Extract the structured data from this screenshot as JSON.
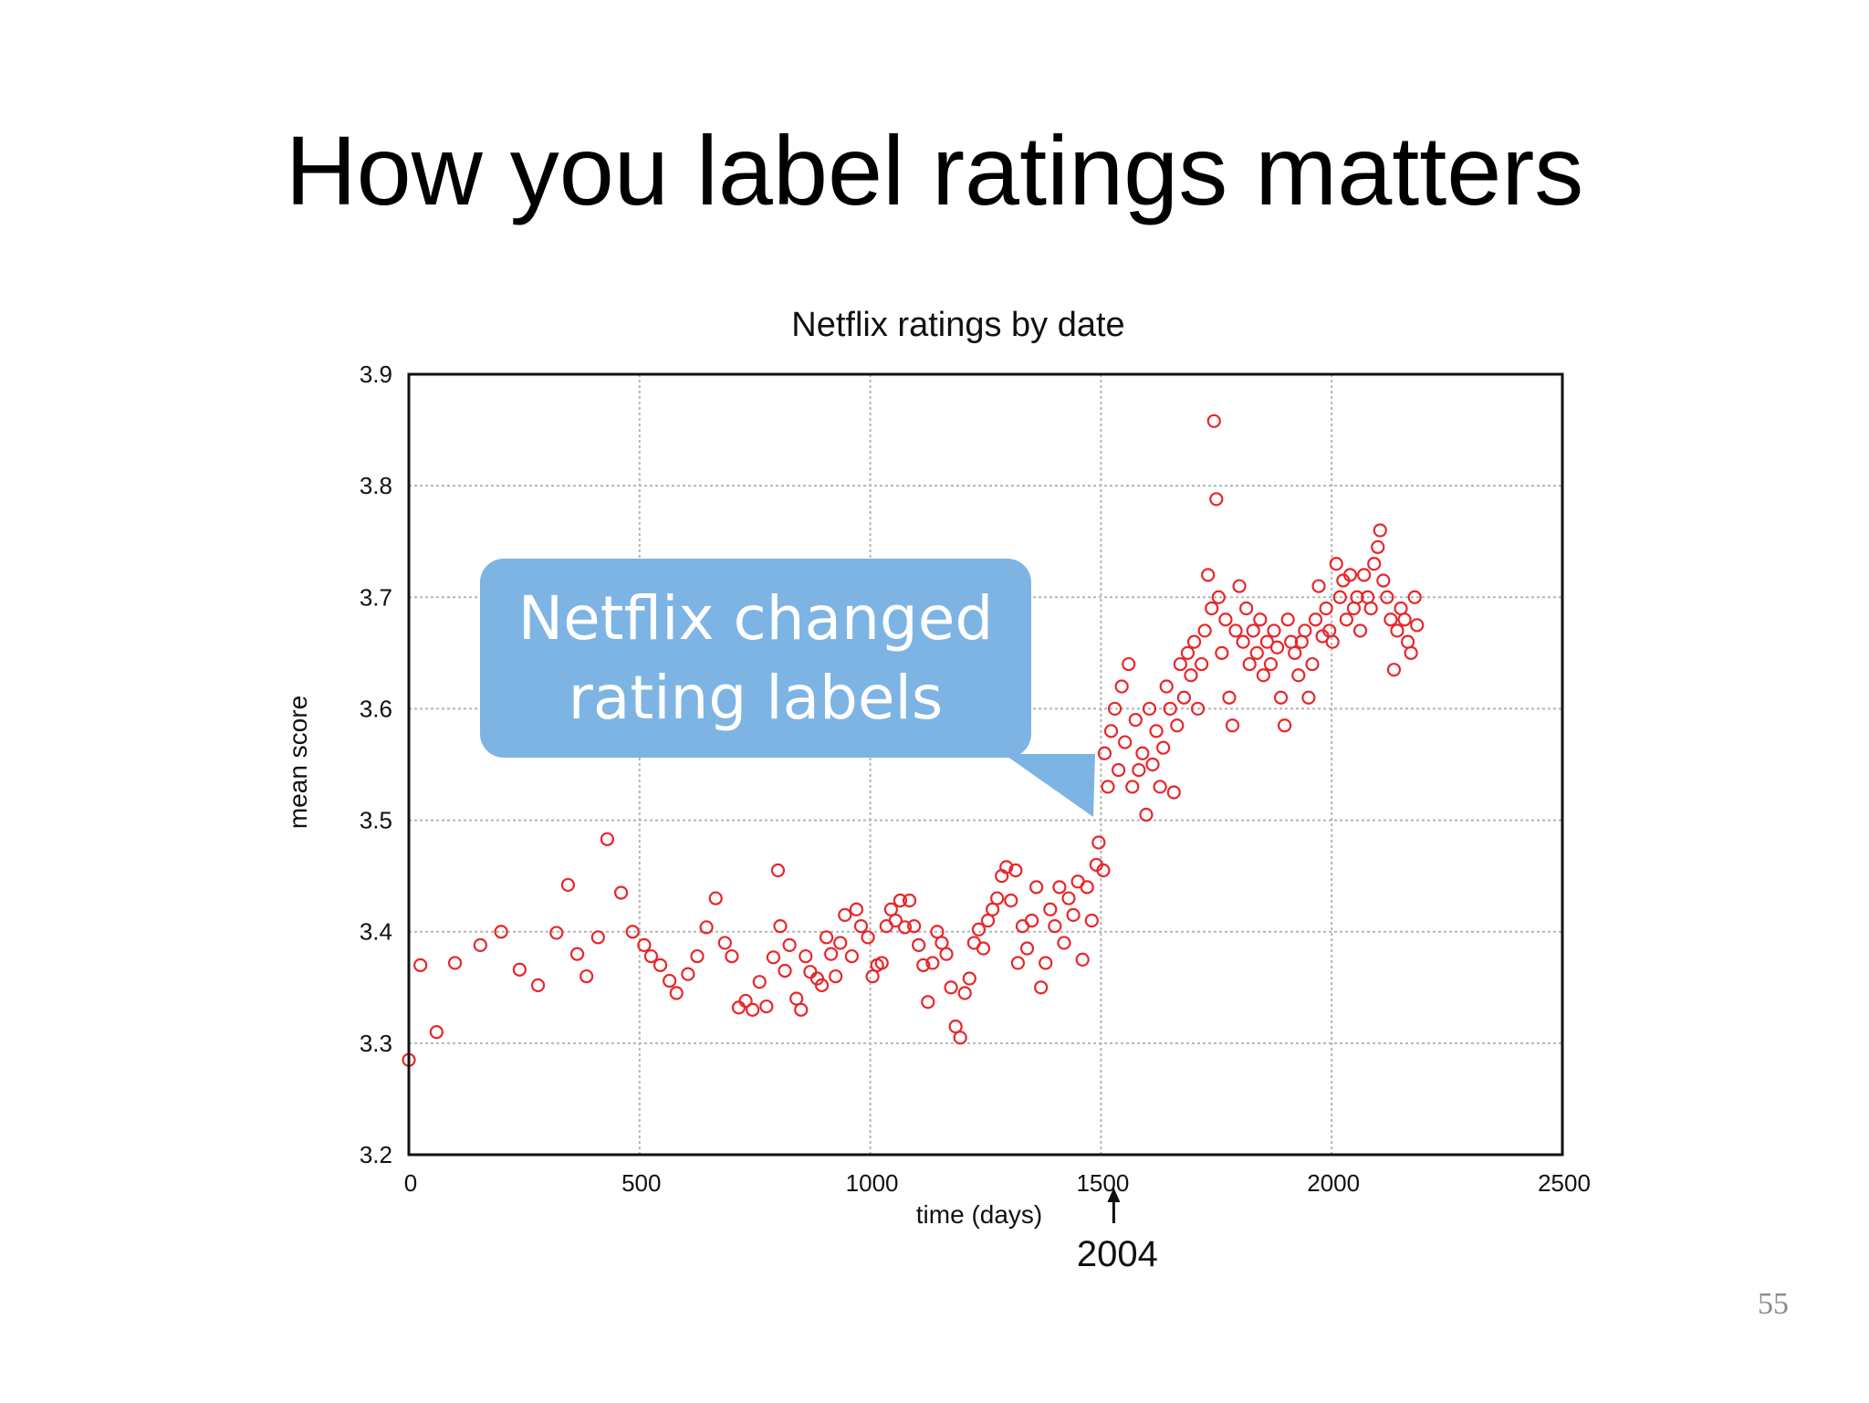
{
  "slide": {
    "title": "How you label ratings matters",
    "page_number": "55"
  },
  "callout": {
    "text": "Netflix changed rating labels"
  },
  "colors": {
    "marker": "#e8262a",
    "callout_bg": "#7db4e4",
    "grid": "#b5b5b5"
  },
  "chart_data": {
    "type": "scatter",
    "title": "Netflix ratings by date",
    "xlabel": "time (days)",
    "ylabel": "mean score",
    "xlim": [
      0,
      2500
    ],
    "ylim": [
      3.2,
      3.9
    ],
    "xticks": [
      "0",
      "500",
      "1000",
      "1500",
      "2000",
      "2500"
    ],
    "yticks": [
      "3.2",
      "3.3",
      "3.4",
      "3.5",
      "3.6",
      "3.7",
      "3.8",
      "3.9"
    ],
    "grid": true,
    "annotation": {
      "text": "2004",
      "x": 1500
    },
    "series": [
      {
        "marker": "open-circle",
        "points": [
          [
            0,
            3.285
          ],
          [
            25,
            3.37
          ],
          [
            60,
            3.31
          ],
          [
            100,
            3.372
          ],
          [
            155,
            3.388
          ],
          [
            200,
            3.4
          ],
          [
            240,
            3.366
          ],
          [
            280,
            3.352
          ],
          [
            320,
            3.399
          ],
          [
            345,
            3.442
          ],
          [
            365,
            3.38
          ],
          [
            385,
            3.36
          ],
          [
            410,
            3.395
          ],
          [
            430,
            3.483
          ],
          [
            460,
            3.435
          ],
          [
            485,
            3.4
          ],
          [
            510,
            3.388
          ],
          [
            525,
            3.378
          ],
          [
            545,
            3.37
          ],
          [
            565,
            3.356
          ],
          [
            580,
            3.345
          ],
          [
            605,
            3.362
          ],
          [
            625,
            3.378
          ],
          [
            645,
            3.404
          ],
          [
            665,
            3.43
          ],
          [
            685,
            3.39
          ],
          [
            700,
            3.378
          ],
          [
            715,
            3.332
          ],
          [
            730,
            3.338
          ],
          [
            745,
            3.33
          ],
          [
            760,
            3.355
          ],
          [
            775,
            3.333
          ],
          [
            790,
            3.377
          ],
          [
            800,
            3.455
          ],
          [
            805,
            3.405
          ],
          [
            815,
            3.365
          ],
          [
            825,
            3.388
          ],
          [
            840,
            3.34
          ],
          [
            850,
            3.33
          ],
          [
            860,
            3.378
          ],
          [
            870,
            3.364
          ],
          [
            885,
            3.358
          ],
          [
            895,
            3.352
          ],
          [
            905,
            3.395
          ],
          [
            915,
            3.38
          ],
          [
            925,
            3.36
          ],
          [
            935,
            3.39
          ],
          [
            945,
            3.415
          ],
          [
            960,
            3.378
          ],
          [
            970,
            3.42
          ],
          [
            980,
            3.405
          ],
          [
            995,
            3.395
          ],
          [
            1005,
            3.36
          ],
          [
            1015,
            3.37
          ],
          [
            1025,
            3.372
          ],
          [
            1035,
            3.405
          ],
          [
            1045,
            3.42
          ],
          [
            1055,
            3.41
          ],
          [
            1065,
            3.428
          ],
          [
            1075,
            3.404
          ],
          [
            1085,
            3.428
          ],
          [
            1095,
            3.405
          ],
          [
            1105,
            3.388
          ],
          [
            1115,
            3.37
          ],
          [
            1125,
            3.337
          ],
          [
            1135,
            3.372
          ],
          [
            1145,
            3.4
          ],
          [
            1155,
            3.39
          ],
          [
            1165,
            3.38
          ],
          [
            1175,
            3.35
          ],
          [
            1185,
            3.315
          ],
          [
            1195,
            3.305
          ],
          [
            1205,
            3.345
          ],
          [
            1215,
            3.358
          ],
          [
            1225,
            3.39
          ],
          [
            1235,
            3.402
          ],
          [
            1245,
            3.385
          ],
          [
            1255,
            3.41
          ],
          [
            1265,
            3.42
          ],
          [
            1275,
            3.43
          ],
          [
            1285,
            3.45
          ],
          [
            1295,
            3.458
          ],
          [
            1305,
            3.428
          ],
          [
            1315,
            3.455
          ],
          [
            1320,
            3.372
          ],
          [
            1330,
            3.405
          ],
          [
            1340,
            3.385
          ],
          [
            1350,
            3.41
          ],
          [
            1360,
            3.44
          ],
          [
            1370,
            3.35
          ],
          [
            1380,
            3.372
          ],
          [
            1390,
            3.42
          ],
          [
            1400,
            3.405
          ],
          [
            1410,
            3.44
          ],
          [
            1420,
            3.39
          ],
          [
            1430,
            3.43
          ],
          [
            1440,
            3.415
          ],
          [
            1450,
            3.445
          ],
          [
            1460,
            3.375
          ],
          [
            1470,
            3.44
          ],
          [
            1480,
            3.41
          ],
          [
            1490,
            3.46
          ],
          [
            1495,
            3.48
          ],
          [
            1505,
            3.455
          ],
          [
            1508,
            3.56
          ],
          [
            1515,
            3.53
          ],
          [
            1522,
            3.58
          ],
          [
            1530,
            3.6
          ],
          [
            1538,
            3.545
          ],
          [
            1545,
            3.62
          ],
          [
            1552,
            3.57
          ],
          [
            1560,
            3.64
          ],
          [
            1568,
            3.53
          ],
          [
            1575,
            3.59
          ],
          [
            1582,
            3.545
          ],
          [
            1590,
            3.56
          ],
          [
            1598,
            3.505
          ],
          [
            1605,
            3.6
          ],
          [
            1612,
            3.55
          ],
          [
            1620,
            3.58
          ],
          [
            1628,
            3.53
          ],
          [
            1635,
            3.565
          ],
          [
            1642,
            3.62
          ],
          [
            1650,
            3.6
          ],
          [
            1658,
            3.525
          ],
          [
            1665,
            3.585
          ],
          [
            1672,
            3.64
          ],
          [
            1680,
            3.61
          ],
          [
            1688,
            3.65
          ],
          [
            1695,
            3.63
          ],
          [
            1702,
            3.66
          ],
          [
            1710,
            3.6
          ],
          [
            1718,
            3.64
          ],
          [
            1725,
            3.67
          ],
          [
            1732,
            3.72
          ],
          [
            1740,
            3.69
          ],
          [
            1745,
            3.858
          ],
          [
            1750,
            3.788
          ],
          [
            1755,
            3.7
          ],
          [
            1762,
            3.65
          ],
          [
            1770,
            3.68
          ],
          [
            1778,
            3.61
          ],
          [
            1785,
            3.585
          ],
          [
            1792,
            3.67
          ],
          [
            1800,
            3.71
          ],
          [
            1808,
            3.66
          ],
          [
            1815,
            3.69
          ],
          [
            1822,
            3.64
          ],
          [
            1830,
            3.67
          ],
          [
            1838,
            3.65
          ],
          [
            1845,
            3.68
          ],
          [
            1852,
            3.63
          ],
          [
            1860,
            3.66
          ],
          [
            1868,
            3.64
          ],
          [
            1875,
            3.67
          ],
          [
            1882,
            3.655
          ],
          [
            1890,
            3.61
          ],
          [
            1898,
            3.585
          ],
          [
            1905,
            3.68
          ],
          [
            1912,
            3.66
          ],
          [
            1920,
            3.65
          ],
          [
            1928,
            3.63
          ],
          [
            1935,
            3.66
          ],
          [
            1942,
            3.67
          ],
          [
            1950,
            3.61
          ],
          [
            1958,
            3.64
          ],
          [
            1965,
            3.68
          ],
          [
            1972,
            3.71
          ],
          [
            1980,
            3.665
          ],
          [
            1988,
            3.69
          ],
          [
            1995,
            3.67
          ],
          [
            2002,
            3.66
          ],
          [
            2010,
            3.73
          ],
          [
            2018,
            3.7
          ],
          [
            2025,
            3.715
          ],
          [
            2032,
            3.68
          ],
          [
            2040,
            3.72
          ],
          [
            2048,
            3.69
          ],
          [
            2055,
            3.7
          ],
          [
            2062,
            3.67
          ],
          [
            2070,
            3.72
          ],
          [
            2078,
            3.7
          ],
          [
            2085,
            3.69
          ],
          [
            2092,
            3.73
          ],
          [
            2100,
            3.745
          ],
          [
            2105,
            3.76
          ],
          [
            2112,
            3.715
          ],
          [
            2120,
            3.7
          ],
          [
            2128,
            3.68
          ],
          [
            2135,
            3.635
          ],
          [
            2142,
            3.67
          ],
          [
            2150,
            3.69
          ],
          [
            2158,
            3.68
          ],
          [
            2165,
            3.66
          ],
          [
            2172,
            3.65
          ],
          [
            2180,
            3.7
          ],
          [
            2185,
            3.675
          ]
        ]
      }
    ]
  }
}
